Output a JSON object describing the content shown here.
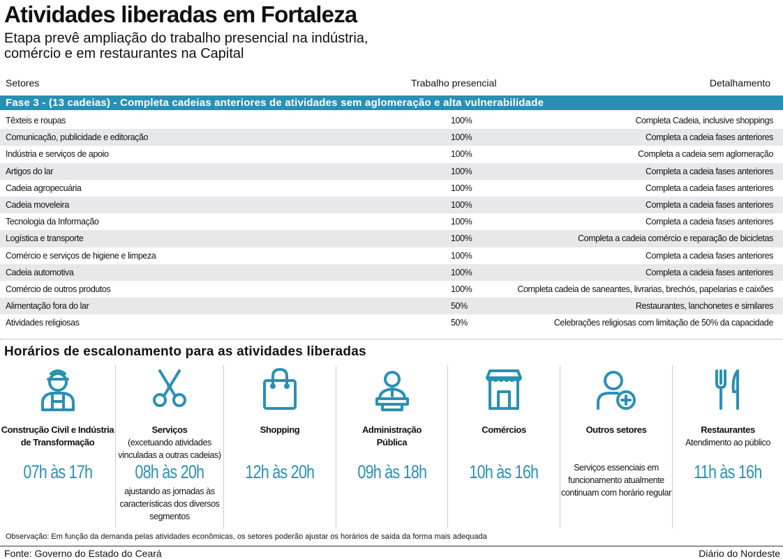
{
  "title": "Atividades liberadas em Fortaleza",
  "subtitle": [
    "Etapa prevê ampliação do trabalho presencial na indústria,",
    "comércio e em restaurantes na Capital"
  ],
  "table": {
    "headers": [
      "Setores",
      "Trabalho presencial",
      "Detalhamento"
    ],
    "phase": "Fase 3 - (13 cadeias) - Completa cadeias anteriores de atividades sem aglomeração e alta vulnerabilidade",
    "rows": [
      [
        "Têxteis e roupas",
        "100%",
        "Completa Cadeia, inclusive shoppings"
      ],
      [
        "Comunicação, publicidade e editoração",
        "100%",
        "Completa a cadeia fases anteriores"
      ],
      [
        "Indústria e serviços de apoio",
        "100%",
        "Completa a cadeia sem aglomeração"
      ],
      [
        "Artigos do lar",
        "100%",
        "Completa a cadeia fases anteriores"
      ],
      [
        "Cadeia agropecuária",
        "100%",
        "Completa a cadeia fases anteriores"
      ],
      [
        "Cadeia moveleira",
        "100%",
        "Completa a cadeia fases anteriores"
      ],
      [
        "Tecnologia da Informação",
        "100%",
        "Completa a cadeia fases anteriores"
      ],
      [
        "Logística e transporte",
        "100%",
        "Completa a cadeia comércio e reparação de bicicletas"
      ],
      [
        "Comércio e serviços de higiene e limpeza",
        "100%",
        "Completa a cadeia fases anteriores"
      ],
      [
        "Cadeia automotiva",
        "100%",
        "Completa a cadeia fases anteriores"
      ],
      [
        "Comércio de outros produtos",
        "100%",
        "Completa cadeia de saneantes, livrarias, brechós, papelarias e caixões"
      ],
      [
        "Alimentação fora do lar",
        "50%",
        "Restaurantes, lanchonetes e similares"
      ],
      [
        "Atividades religiosas",
        "50%",
        "Celebrações religiosas com limitação de 50% da capacidade"
      ]
    ]
  },
  "schedule": {
    "title": "Horários de escalonamento para as atividades liberadas",
    "items": [
      {
        "icon": "worker-icon",
        "label": [
          "Construção Civil e Indústria",
          "de Transformação"
        ],
        "desc": [],
        "time": "07h às 17h",
        "note": []
      },
      {
        "icon": "scissors-icon",
        "label": [
          "Serviços"
        ],
        "desc": [
          "(excetuando atividades",
          "vinculadas a outras cadeias)"
        ],
        "time": "08h às 20h",
        "note": [
          "ajustando as jornadas às",
          "características dos diversos",
          "segmentos"
        ]
      },
      {
        "icon": "shopping-bag-icon",
        "label": [
          "Shopping"
        ],
        "desc": [],
        "time": "12h às 20h",
        "note": []
      },
      {
        "icon": "public-servant-icon",
        "label": [
          "Administração",
          "Pública"
        ],
        "desc": [],
        "time": "09h às 18h",
        "note": []
      },
      {
        "icon": "storefront-icon",
        "label": [
          "Comércios"
        ],
        "desc": [],
        "time": "10h às 16h",
        "note": []
      },
      {
        "icon": "person-plus-icon",
        "label": [
          "Outros setores"
        ],
        "desc": [],
        "time": "",
        "note": [
          "Serviços essenciais em",
          "funcionamento atualmente",
          "continuam com horário regular"
        ]
      },
      {
        "icon": "fork-knife-icon",
        "label": [
          "Restaurantes"
        ],
        "desc": [
          "Atendimento ao público"
        ],
        "time": "11h às 16h",
        "note": []
      }
    ]
  },
  "observation": "Observação: Em função da demanda pelas atividades econômicas, os setores poderão ajustar os horários de saída da forma mais adequada",
  "source": "Fonte:  Governo do Estado do Ceará",
  "brand": "Diário do Nordeste",
  "colors": {
    "accent": "#2a90b3",
    "stripe": "#e7e8e9"
  }
}
